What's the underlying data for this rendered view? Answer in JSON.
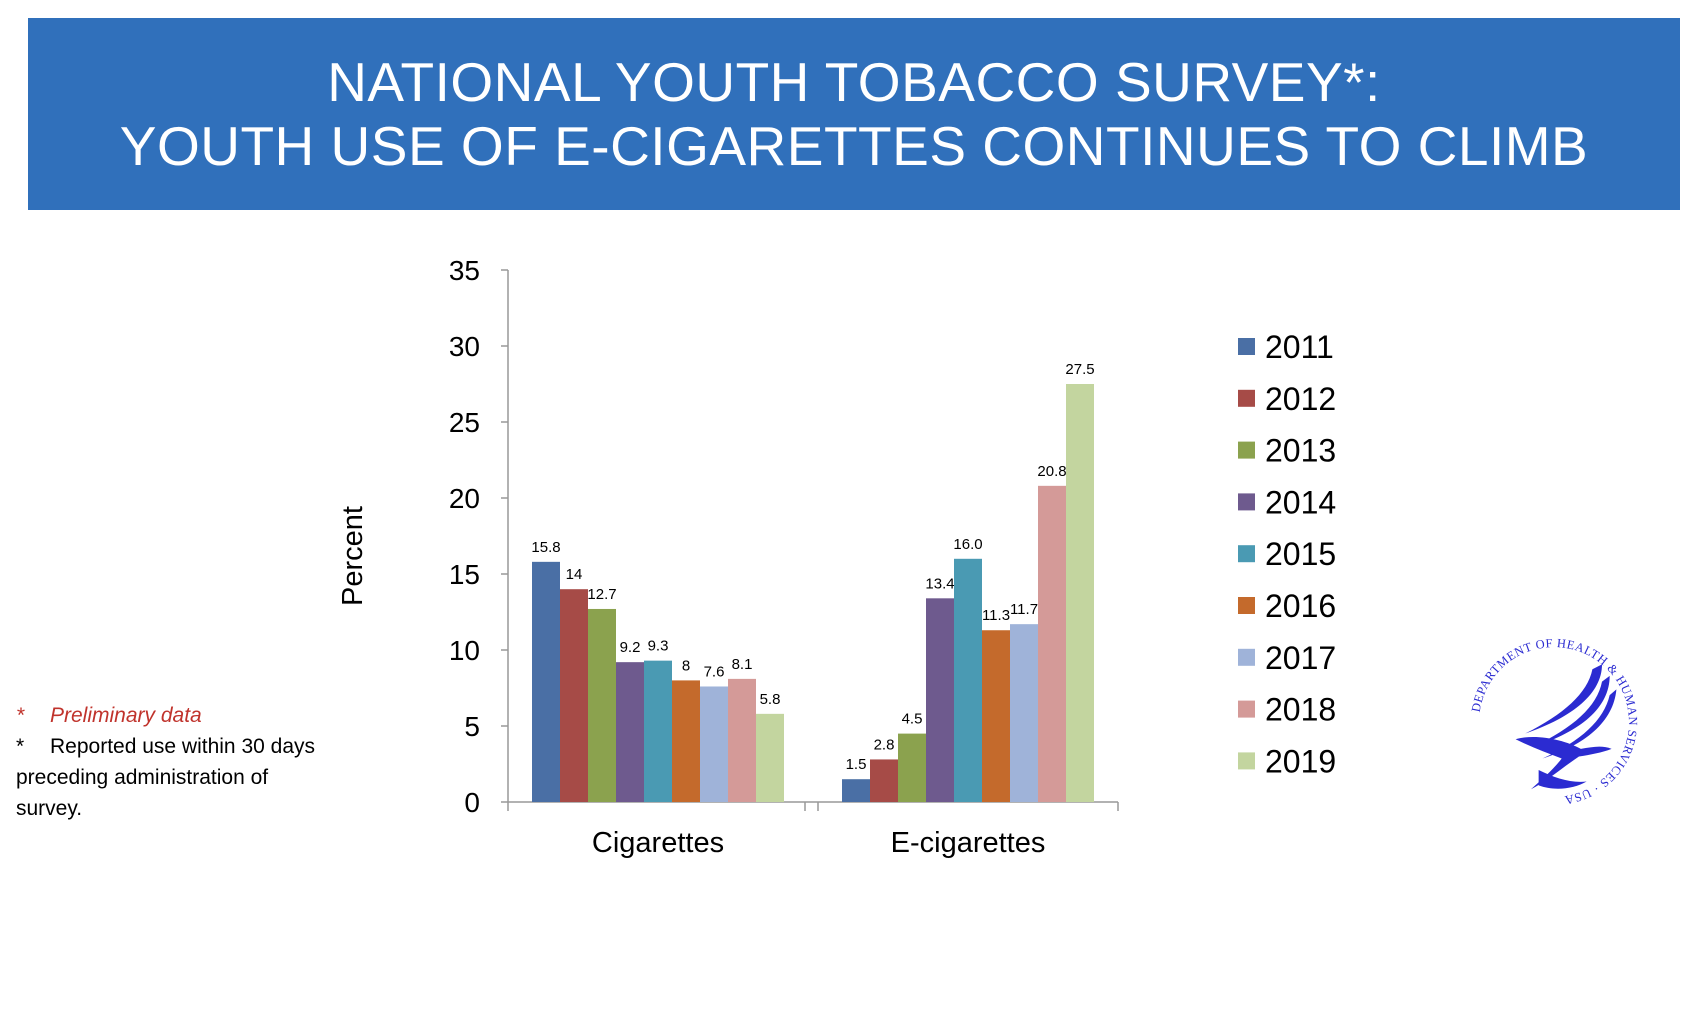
{
  "header": {
    "title_line1": "NATIONAL YOUTH TOBACCO SURVEY*:",
    "title_line2": "YOUTH USE OF E-CIGARETTES CONTINUES TO CLIMB"
  },
  "chart_data": {
    "type": "bar",
    "ylabel": "Percent",
    "xlabel": "",
    "ylim": [
      0,
      35
    ],
    "yticks": [
      "0",
      "5",
      "10",
      "15",
      "20",
      "25",
      "30",
      "35"
    ],
    "grid": false,
    "legend_position": "right",
    "categories": [
      "Cigarettes",
      "E-cigarettes"
    ],
    "series": [
      {
        "name": "2011",
        "color": "#4a6fa5",
        "values": [
          15.8,
          1.5
        ],
        "labels": [
          "15.8",
          "1.5"
        ]
      },
      {
        "name": "2012",
        "color": "#a64b47",
        "values": [
          14,
          2.8
        ],
        "labels": [
          "14",
          "2.8"
        ]
      },
      {
        "name": "2013",
        "color": "#8ba24e",
        "values": [
          12.7,
          4.5
        ],
        "labels": [
          "12.7",
          "4.5"
        ]
      },
      {
        "name": "2014",
        "color": "#6e5a8e",
        "values": [
          9.2,
          13.4
        ],
        "labels": [
          "9.2",
          "13.4"
        ]
      },
      {
        "name": "2015",
        "color": "#4a9ab3",
        "values": [
          9.3,
          16.0
        ],
        "labels": [
          "9.3",
          "16.0"
        ]
      },
      {
        "name": "2016",
        "color": "#c46a2c",
        "values": [
          8,
          11.3
        ],
        "labels": [
          "8",
          "11.3"
        ]
      },
      {
        "name": "2017",
        "color": "#9fb3d9",
        "values": [
          7.6,
          11.7
        ],
        "labels": [
          "7.6",
          "11.7"
        ]
      },
      {
        "name": "2018",
        "color": "#d49a98",
        "values": [
          8.1,
          20.8
        ],
        "labels": [
          "8.1",
          "20.8"
        ]
      },
      {
        "name": "2019",
        "color": "#c3d59f",
        "values": [
          5.8,
          27.5
        ],
        "labels": [
          "5.8",
          "27.5"
        ]
      }
    ]
  },
  "notes": {
    "note1_star": "*",
    "note1_text": "Preliminary data",
    "note2_star": "*",
    "note2_text": "Reported use within 30 days preceding administration of survey."
  },
  "seal": {
    "ring_text": "DEPARTMENT OF HEALTH & HUMAN SERVICES · USA",
    "color": "#2b2bd1"
  }
}
